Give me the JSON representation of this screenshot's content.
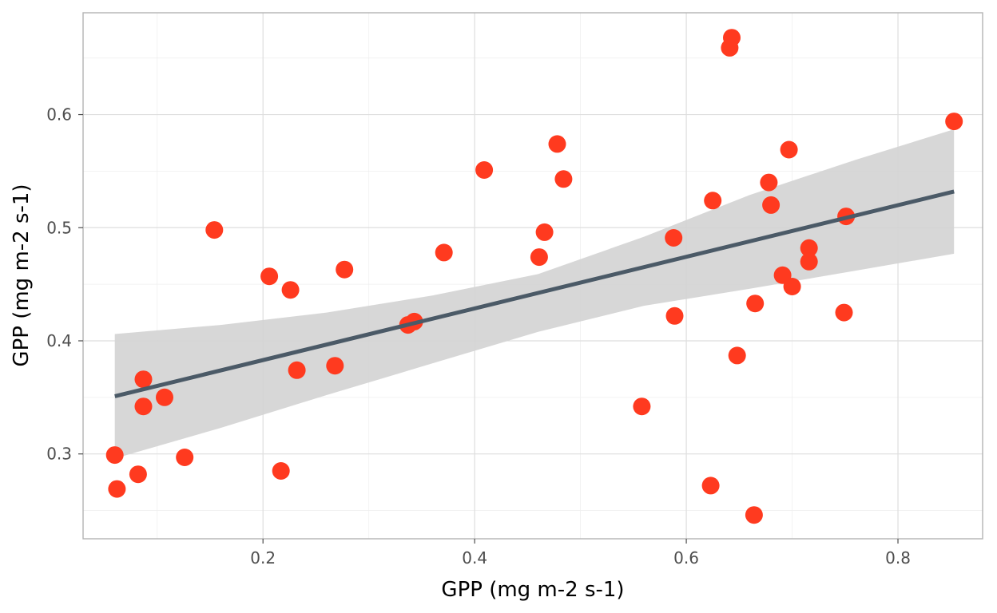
{
  "chart_data": {
    "type": "scatter",
    "title": "",
    "xlabel": "GPP (mg m-2 s-1)",
    "ylabel": "GPP (mg m-2 s-1)",
    "xlim": [
      0.03,
      0.88
    ],
    "ylim": [
      0.225,
      0.69
    ],
    "x_ticks": [
      0.2,
      0.4,
      0.6,
      0.8
    ],
    "x_tick_labels": [
      "0.2",
      "0.4",
      "0.6",
      "0.8"
    ],
    "y_ticks": [
      0.3,
      0.4,
      0.5,
      0.6
    ],
    "y_tick_labels": [
      "0.3",
      "0.4",
      "0.5",
      "0.6"
    ],
    "grid": true,
    "legend": "none",
    "point_color": "#ff3a1f",
    "line_color": "#4b5a67",
    "band_color": "#d3d3d3",
    "series": [
      {
        "points": [
          [
            0.06,
            0.299
          ],
          [
            0.062,
            0.269
          ],
          [
            0.082,
            0.282
          ],
          [
            0.087,
            0.366
          ],
          [
            0.087,
            0.342
          ],
          [
            0.107,
            0.35
          ],
          [
            0.126,
            0.297
          ],
          [
            0.154,
            0.498
          ],
          [
            0.206,
            0.457
          ],
          [
            0.217,
            0.285
          ],
          [
            0.226,
            0.445
          ],
          [
            0.232,
            0.374
          ],
          [
            0.268,
            0.378
          ],
          [
            0.277,
            0.463
          ],
          [
            0.337,
            0.414
          ],
          [
            0.343,
            0.417
          ],
          [
            0.371,
            0.478
          ],
          [
            0.409,
            0.551
          ],
          [
            0.461,
            0.474
          ],
          [
            0.466,
            0.496
          ],
          [
            0.478,
            0.574
          ],
          [
            0.484,
            0.543
          ],
          [
            0.558,
            0.342
          ],
          [
            0.588,
            0.491
          ],
          [
            0.589,
            0.422
          ],
          [
            0.623,
            0.272
          ],
          [
            0.625,
            0.524
          ],
          [
            0.641,
            0.659
          ],
          [
            0.643,
            0.668
          ],
          [
            0.648,
            0.387
          ],
          [
            0.664,
            0.246
          ],
          [
            0.665,
            0.433
          ],
          [
            0.678,
            0.54
          ],
          [
            0.68,
            0.52
          ],
          [
            0.691,
            0.458
          ],
          [
            0.697,
            0.569
          ],
          [
            0.7,
            0.448
          ],
          [
            0.716,
            0.482
          ],
          [
            0.716,
            0.47
          ],
          [
            0.749,
            0.425
          ],
          [
            0.751,
            0.51
          ],
          [
            0.853,
            0.594
          ]
        ]
      }
    ],
    "fit": {
      "x": [
        0.06,
        0.853
      ],
      "y": [
        0.351,
        0.532
      ]
    },
    "band": {
      "x": [
        0.06,
        0.16,
        0.26,
        0.36,
        0.46,
        0.56,
        0.66,
        0.76,
        0.853
      ],
      "lower": [
        0.296,
        0.323,
        0.352,
        0.38,
        0.408,
        0.431,
        0.446,
        0.462,
        0.477
      ],
      "upper": [
        0.406,
        0.414,
        0.425,
        0.44,
        0.459,
        0.492,
        0.529,
        0.56,
        0.587
      ]
    }
  }
}
